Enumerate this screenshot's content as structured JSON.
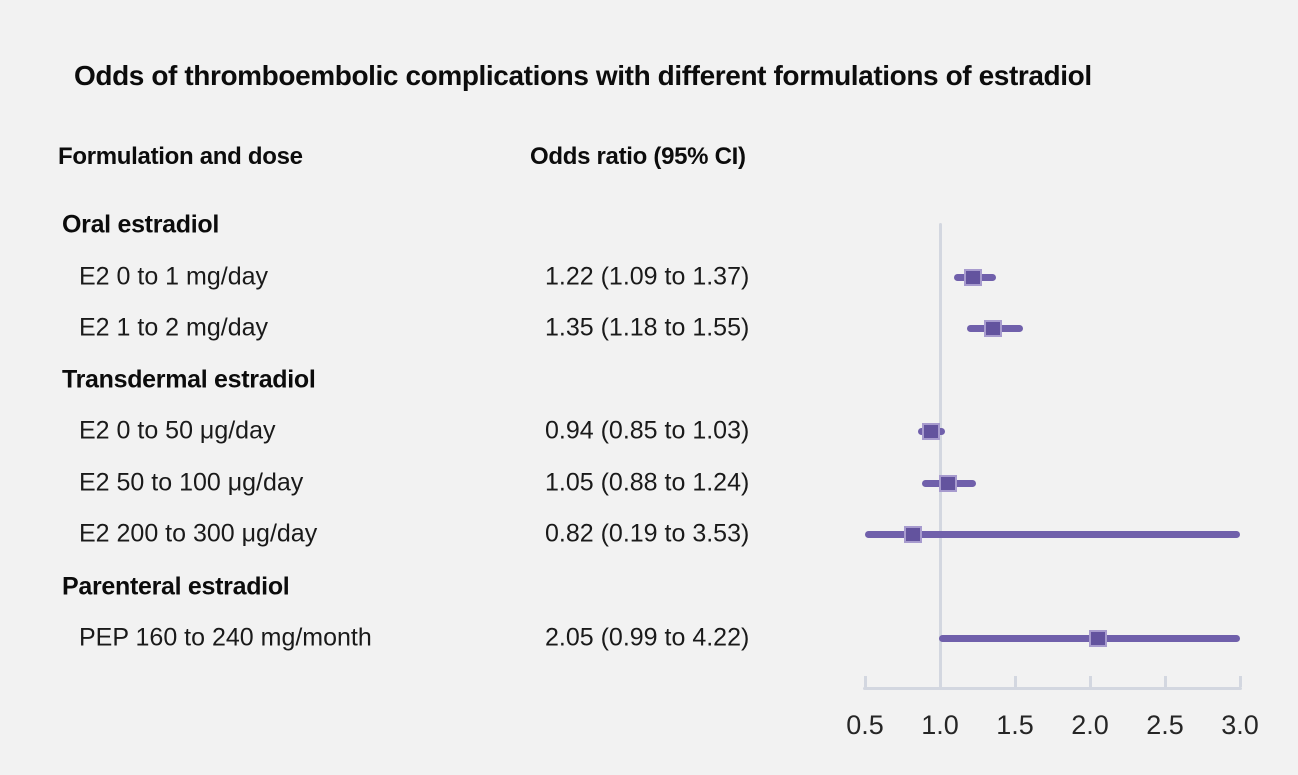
{
  "figure": {
    "title": "Odds of thromboembolic complications with different formulations of estradiol",
    "column_headers": {
      "formulation": "Formulation and dose",
      "odds_ratio": "Odds ratio (95% CI)"
    }
  },
  "colors": {
    "background": "#f2f2f2",
    "title_text": "#0c0c0c",
    "body_text": "#1a1a1a",
    "marker_fill": "#63539e",
    "marker_border": "#a79bce",
    "ci_line": "#7060ab",
    "axis_line": "#d3d7e0",
    "reference_line": "#d3d7e0",
    "tick_label_text": "#262626"
  },
  "chart_data": {
    "type": "forest",
    "title": "Odds of thromboembolic complications with different formulations of estradiol",
    "xlabel": "Odds ratio (95% CI)",
    "axis": {
      "min": 0.5,
      "max": 3.0,
      "ticks": [
        "0.5",
        "1.0",
        "1.5",
        "2.0",
        "2.5",
        "3.0"
      ],
      "tick_values": [
        0.5,
        1.0,
        1.5,
        2.0,
        2.5,
        3.0
      ],
      "reference_value": 1.0,
      "grid": false,
      "note": "CI bars are clipped to the 0.5-3.0 axis range"
    },
    "rows": [
      {
        "type": "group",
        "label": "Oral estradiol"
      },
      {
        "type": "item",
        "label": "E2 0 to 1 mg/day",
        "or_text": "1.22 (1.09 to 1.37)",
        "estimate": 1.22,
        "ci_low": 1.09,
        "ci_high": 1.37
      },
      {
        "type": "item",
        "label": "E2 1 to 2 mg/day",
        "or_text": "1.35 (1.18 to 1.55)",
        "estimate": 1.35,
        "ci_low": 1.18,
        "ci_high": 1.55
      },
      {
        "type": "group",
        "label": "Transdermal estradiol"
      },
      {
        "type": "item",
        "label": "E2 0 to 50 μg/day",
        "or_text": "0.94 (0.85 to 1.03)",
        "estimate": 0.94,
        "ci_low": 0.85,
        "ci_high": 1.03
      },
      {
        "type": "item",
        "label": "E2 50 to 100 μg/day",
        "or_text": "1.05 (0.88 to 1.24)",
        "estimate": 1.05,
        "ci_low": 0.88,
        "ci_high": 1.24
      },
      {
        "type": "item",
        "label": "E2 200 to 300 μg/day",
        "or_text": "0.82 (0.19 to 3.53)",
        "estimate": 0.82,
        "ci_low": 0.19,
        "ci_high": 3.53
      },
      {
        "type": "group",
        "label": "Parenteral estradiol"
      },
      {
        "type": "item",
        "label": "PEP 160 to 240 mg/month",
        "or_text": "2.05 (0.99 to 4.22)",
        "estimate": 2.05,
        "ci_low": 0.99,
        "ci_high": 4.22
      }
    ]
  }
}
